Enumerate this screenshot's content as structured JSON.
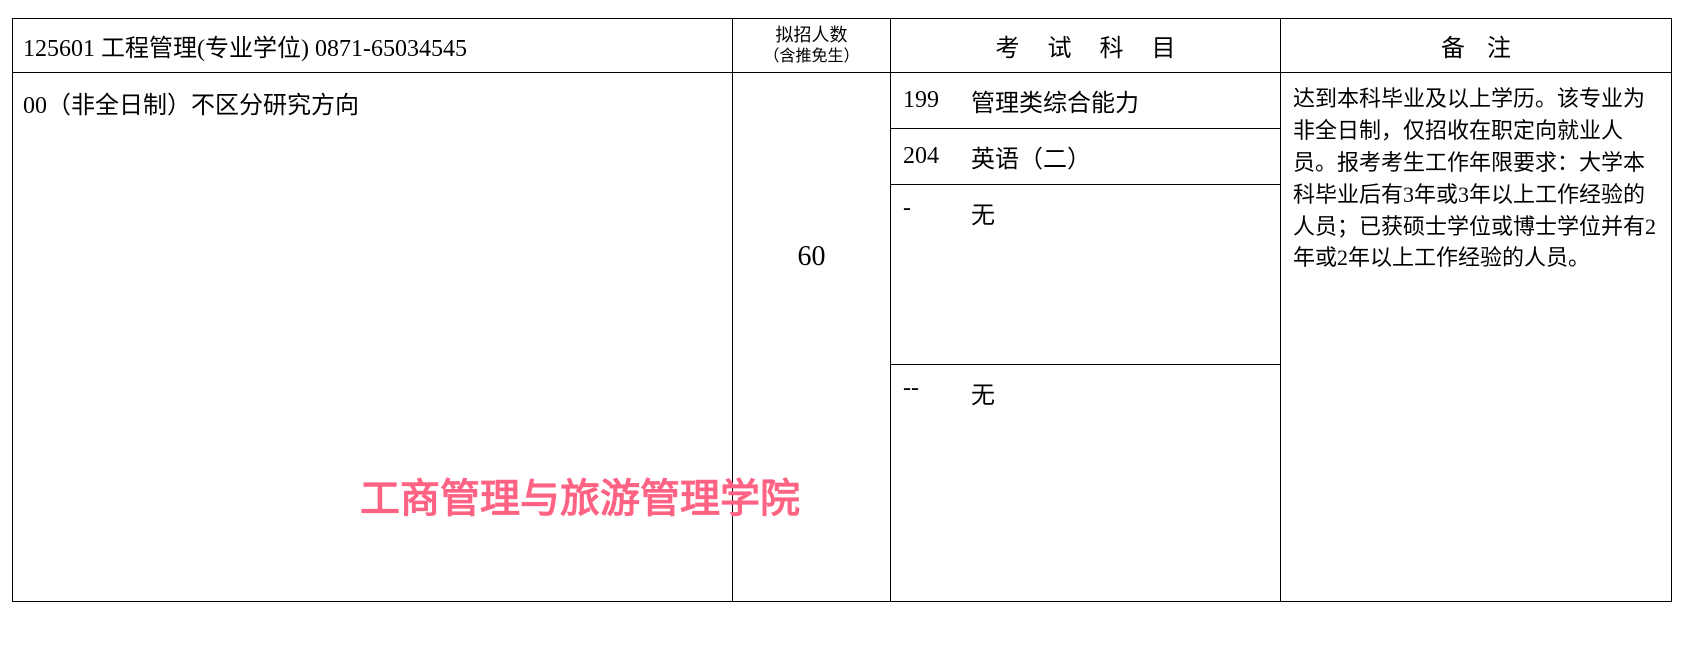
{
  "header": {
    "program_line": "125601 工程管理(专业学位)  0871-65034545",
    "quota_label": "拟招人数",
    "quota_sublabel": "（含推免生）",
    "exam_label": "考试科目",
    "remark_label": "备注"
  },
  "body": {
    "direction": "00（非全日制）不区分研究方向",
    "quota": "60",
    "exams": [
      {
        "code": "199",
        "name": "管理类综合能力"
      },
      {
        "code": "204",
        "name": "英语（二）"
      },
      {
        "code": "-",
        "name": "无"
      },
      {
        "code": "--",
        "name": "无"
      }
    ],
    "remark": "达到本科毕业及以上学历。该专业为非全日制，仅招收在职定向就业人员。报考考生工作年限要求：大学本科毕业后有3年或3年以上工作经验的人员；已获硕士学位或博士学位并有2年或2年以上工作经验的人员。"
  },
  "watermark": "工商管理与旅游管理学院",
  "colors": {
    "border": "#000000",
    "text": "#000000",
    "watermark": "#ff6384",
    "background": "#ffffff"
  }
}
